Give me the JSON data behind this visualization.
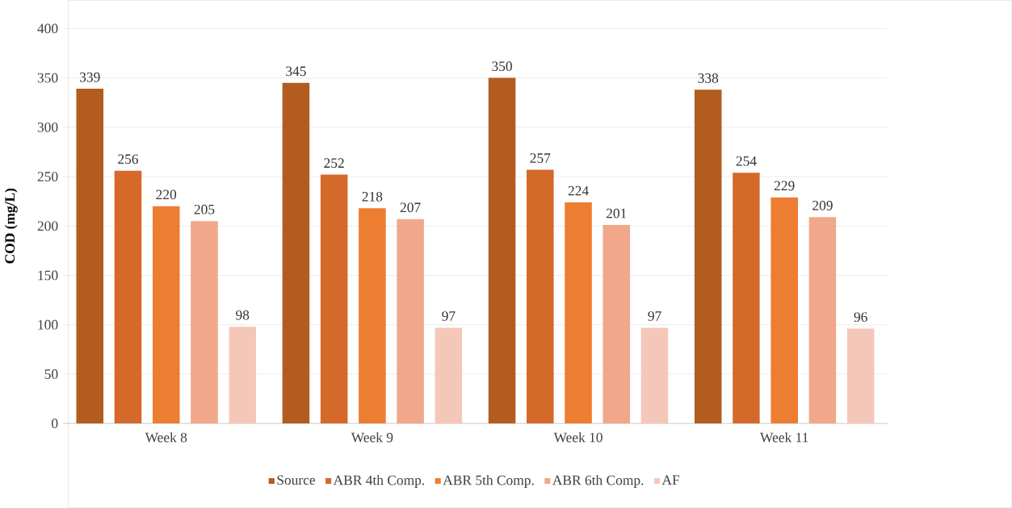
{
  "chart_data": {
    "type": "bar",
    "ylabel": "COD (mg/L)",
    "categories": [
      "Week 8",
      "Week 9",
      "Week 10",
      "Week 11"
    ],
    "series": [
      {
        "name": "Source",
        "color": "#b35c20",
        "values": [
          339,
          345,
          350,
          338
        ]
      },
      {
        "name": "ABR 4th Comp.",
        "color": "#d4692a",
        "values": [
          256,
          252,
          257,
          254
        ]
      },
      {
        "name": "ABR 5th Comp.",
        "color": "#ed7d31",
        "values": [
          220,
          218,
          224,
          229
        ]
      },
      {
        "name": "ABR 6th Comp.",
        "color": "#f0a78a",
        "values": [
          205,
          207,
          201,
          209
        ]
      },
      {
        "name": "AF",
        "color": "#f5c7b8",
        "values": [
          98,
          97,
          97,
          96
        ]
      }
    ],
    "ylim": [
      0,
      400
    ],
    "yticks": [
      0,
      50,
      100,
      150,
      200,
      250,
      300,
      350,
      400
    ],
    "grid": "y",
    "legend": "bottom",
    "data_labels": true
  }
}
